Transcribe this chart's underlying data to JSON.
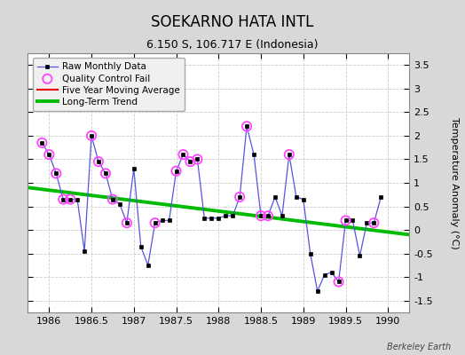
{
  "title": "SOEKARNO HATA INTL",
  "subtitle": "6.150 S, 106.717 E (Indonesia)",
  "ylabel": "Temperature Anomaly (°C)",
  "watermark": "Berkeley Earth",
  "xlim": [
    1985.75,
    1990.25
  ],
  "ylim": [
    -1.75,
    3.75
  ],
  "yticks": [
    -1.5,
    -1.0,
    -0.5,
    0.0,
    0.5,
    1.0,
    1.5,
    2.0,
    2.5,
    3.0,
    3.5
  ],
  "xticks": [
    1986,
    1986.5,
    1987,
    1987.5,
    1988,
    1988.5,
    1989,
    1989.5,
    1990
  ],
  "xtick_labels": [
    "1986",
    "1986.5",
    "1987",
    "1987.5",
    "1988",
    "1988.5",
    "1989",
    "1989.5",
    "1990"
  ],
  "raw_x": [
    1985.917,
    1986.0,
    1986.083,
    1986.167,
    1986.25,
    1986.333,
    1986.417,
    1986.5,
    1986.583,
    1986.667,
    1986.75,
    1986.833,
    1986.917,
    1987.0,
    1987.083,
    1987.167,
    1987.25,
    1987.333,
    1987.417,
    1987.5,
    1987.583,
    1987.667,
    1987.75,
    1987.833,
    1987.917,
    1988.0,
    1988.083,
    1988.167,
    1988.25,
    1988.333,
    1988.417,
    1988.5,
    1988.583,
    1988.667,
    1988.75,
    1988.833,
    1988.917,
    1989.0,
    1989.083,
    1989.167,
    1989.25,
    1989.333,
    1989.417,
    1989.5,
    1989.583,
    1989.667,
    1989.75,
    1989.833,
    1989.917
  ],
  "raw_y": [
    1.85,
    1.6,
    1.2,
    0.65,
    0.65,
    0.65,
    -0.45,
    2.0,
    1.45,
    1.2,
    0.65,
    0.55,
    0.15,
    1.3,
    -0.35,
    -0.75,
    0.15,
    0.2,
    0.2,
    1.25,
    1.6,
    1.45,
    1.5,
    0.25,
    0.25,
    0.25,
    0.3,
    0.3,
    0.7,
    2.2,
    1.6,
    0.3,
    0.3,
    0.7,
    0.3,
    1.6,
    0.7,
    0.65,
    -0.5,
    -1.3,
    -0.95,
    -0.9,
    -1.1,
    0.2,
    0.2,
    -0.55,
    0.15,
    0.15,
    0.7
  ],
  "qc_fail_x": [
    1985.917,
    1986.0,
    1986.083,
    1986.167,
    1986.25,
    1986.5,
    1986.583,
    1986.667,
    1986.75,
    1986.917,
    1987.25,
    1987.5,
    1987.583,
    1987.667,
    1987.75,
    1988.25,
    1988.333,
    1988.5,
    1988.583,
    1988.833,
    1989.417,
    1989.5,
    1989.833
  ],
  "qc_fail_y": [
    1.85,
    1.6,
    1.2,
    0.65,
    0.65,
    2.0,
    1.45,
    1.2,
    0.65,
    0.15,
    0.15,
    1.25,
    1.6,
    1.45,
    1.5,
    0.7,
    2.2,
    0.3,
    0.3,
    1.6,
    -1.1,
    0.2,
    0.15
  ],
  "trend_x": [
    1985.75,
    1990.25
  ],
  "trend_y": [
    0.9,
    -0.1
  ],
  "line_color": "#5555dd",
  "marker_color": "#000000",
  "qc_color": "#ff44ff",
  "trend_color": "#00bb00",
  "ma_color": "#ee0000",
  "bg_color": "#d8d8d8",
  "plot_bg_color": "#ffffff"
}
